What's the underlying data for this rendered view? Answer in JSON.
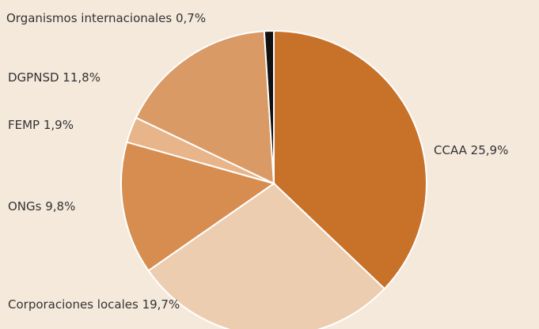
{
  "chart_data": {
    "type": "pie",
    "categories": [
      "CCAA",
      "Corporaciones locales",
      "ONGs",
      "FEMP",
      "DGPNSD",
      "Organismos internacionales"
    ],
    "values": [
      25.9,
      19.7,
      9.8,
      1.9,
      11.8,
      0.7
    ],
    "value_labels": [
      "25,9%",
      "19,7%",
      "9,8%",
      "1,9%",
      "11,8%",
      "0,7%"
    ],
    "colors": [
      "#c87129",
      "#edcdb0",
      "#d68d4f",
      "#e8b58a",
      "#d99a65",
      "#111111"
    ]
  }
}
